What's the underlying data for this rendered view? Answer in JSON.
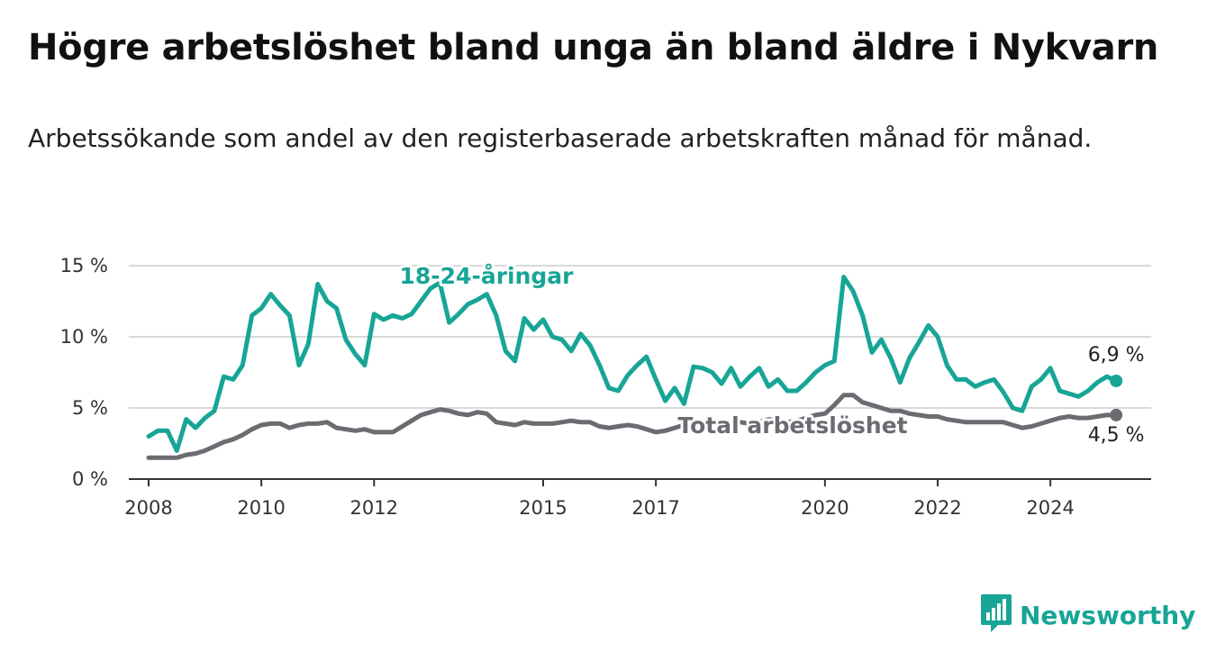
{
  "title": "Högre arbetslöshet bland unga än bland äldre i Nykvarn",
  "subtitle": "Arbetssökande som andel av den registerbaserade arbetskraften månad för månad.",
  "brand": {
    "name": "Newsworthy",
    "color": "#17a596",
    "icon": "bar-chart-logo-icon"
  },
  "chart_data": {
    "type": "line",
    "ylim": [
      0,
      15
    ],
    "xlim": [
      "2008-01",
      "2025-07"
    ],
    "y_ticks": [
      0,
      5,
      10,
      15
    ],
    "y_tick_labels": [
      "0 %",
      "5 %",
      "10 %",
      "15 %"
    ],
    "x_ticks": [
      "2008-01",
      "2010-01",
      "2012-01",
      "2015-01",
      "2017-01",
      "2020-01",
      "2022-01",
      "2024-01"
    ],
    "x_tick_labels": [
      "2008",
      "2010",
      "2012",
      "2015",
      "2017",
      "2020",
      "2022",
      "2024"
    ],
    "grid": "horizontal",
    "series": [
      {
        "name": "18-24-åringar",
        "color": "#17a596",
        "end_label": "6,9 %",
        "x": [
          "2008-01",
          "2008-03",
          "2008-05",
          "2008-07",
          "2008-09",
          "2008-11",
          "2009-01",
          "2009-03",
          "2009-05",
          "2009-07",
          "2009-09",
          "2009-11",
          "2010-01",
          "2010-03",
          "2010-05",
          "2010-07",
          "2010-09",
          "2010-11",
          "2011-01",
          "2011-03",
          "2011-05",
          "2011-07",
          "2011-09",
          "2011-11",
          "2012-01",
          "2012-03",
          "2012-05",
          "2012-07",
          "2012-09",
          "2012-11",
          "2013-01",
          "2013-03",
          "2013-05",
          "2013-07",
          "2013-09",
          "2013-11",
          "2014-01",
          "2014-03",
          "2014-05",
          "2014-07",
          "2014-09",
          "2014-11",
          "2015-01",
          "2015-03",
          "2015-05",
          "2015-07",
          "2015-09",
          "2015-11",
          "2016-01",
          "2016-03",
          "2016-05",
          "2016-07",
          "2016-09",
          "2016-11",
          "2017-01",
          "2017-03",
          "2017-05",
          "2017-07",
          "2017-09",
          "2017-11",
          "2018-01",
          "2018-03",
          "2018-05",
          "2018-07",
          "2018-09",
          "2018-11",
          "2019-01",
          "2019-03",
          "2019-05",
          "2019-07",
          "2019-09",
          "2019-11",
          "2020-01",
          "2020-03",
          "2020-05",
          "2020-07",
          "2020-09",
          "2020-11",
          "2021-01",
          "2021-03",
          "2021-05",
          "2021-07",
          "2021-09",
          "2021-11",
          "2022-01",
          "2022-03",
          "2022-05",
          "2022-07",
          "2022-09",
          "2022-11",
          "2023-01",
          "2023-03",
          "2023-05",
          "2023-07",
          "2023-09",
          "2023-11",
          "2024-01",
          "2024-03",
          "2024-05",
          "2024-07",
          "2024-09",
          "2024-11",
          "2025-01",
          "2025-03"
        ],
        "values": [
          3.0,
          3.4,
          3.4,
          2.0,
          4.2,
          3.6,
          4.3,
          4.8,
          7.2,
          7.0,
          8.0,
          11.5,
          12.0,
          13.0,
          12.2,
          11.5,
          8.0,
          9.5,
          13.7,
          12.5,
          12.0,
          9.8,
          8.8,
          8.0,
          11.6,
          11.2,
          11.5,
          11.3,
          11.6,
          12.5,
          13.4,
          13.8,
          11.0,
          11.6,
          12.3,
          12.6,
          13.0,
          11.5,
          9.0,
          8.3,
          11.3,
          10.5,
          11.2,
          10.0,
          9.8,
          9.0,
          10.2,
          9.4,
          8.0,
          6.4,
          6.2,
          7.3,
          8.0,
          8.6,
          7.0,
          5.5,
          6.4,
          5.3,
          7.9,
          7.8,
          7.5,
          6.7,
          7.8,
          6.5,
          7.2,
          7.8,
          6.5,
          7.0,
          6.2,
          6.2,
          6.8,
          7.5,
          8.0,
          8.3,
          14.2,
          13.2,
          11.5,
          8.9,
          9.8,
          8.5,
          6.8,
          8.5,
          9.6,
          10.8,
          10.0,
          8.0,
          7.0,
          7.0,
          6.5,
          6.8,
          7.0,
          6.1,
          5.0,
          4.8,
          6.5,
          7.0,
          7.8,
          6.2,
          6.0,
          5.8,
          6.2,
          6.8,
          7.2,
          6.9
        ]
      },
      {
        "name": "Total arbetslöshet",
        "color": "#6b6b72",
        "end_label": "4,5 %",
        "x": [
          "2008-01",
          "2008-03",
          "2008-05",
          "2008-07",
          "2008-09",
          "2008-11",
          "2009-01",
          "2009-03",
          "2009-05",
          "2009-07",
          "2009-09",
          "2009-11",
          "2010-01",
          "2010-03",
          "2010-05",
          "2010-07",
          "2010-09",
          "2010-11",
          "2011-01",
          "2011-03",
          "2011-05",
          "2011-07",
          "2011-09",
          "2011-11",
          "2012-01",
          "2012-03",
          "2012-05",
          "2012-07",
          "2012-09",
          "2012-11",
          "2013-01",
          "2013-03",
          "2013-05",
          "2013-07",
          "2013-09",
          "2013-11",
          "2014-01",
          "2014-03",
          "2014-05",
          "2014-07",
          "2014-09",
          "2014-11",
          "2015-01",
          "2015-03",
          "2015-05",
          "2015-07",
          "2015-09",
          "2015-11",
          "2016-01",
          "2016-03",
          "2016-05",
          "2016-07",
          "2016-09",
          "2016-11",
          "2017-01",
          "2017-03",
          "2017-05",
          "2017-07",
          "2017-09",
          "2017-11",
          "2018-01",
          "2018-03",
          "2018-05",
          "2018-07",
          "2018-09",
          "2018-11",
          "2019-01",
          "2019-03",
          "2019-05",
          "2019-07",
          "2019-09",
          "2019-11",
          "2020-01",
          "2020-03",
          "2020-05",
          "2020-07",
          "2020-09",
          "2020-11",
          "2021-01",
          "2021-03",
          "2021-05",
          "2021-07",
          "2021-09",
          "2021-11",
          "2022-01",
          "2022-03",
          "2022-05",
          "2022-07",
          "2022-09",
          "2022-11",
          "2023-01",
          "2023-03",
          "2023-05",
          "2023-07",
          "2023-09",
          "2023-11",
          "2024-01",
          "2024-03",
          "2024-05",
          "2024-07",
          "2024-09",
          "2024-11",
          "2025-01",
          "2025-03"
        ],
        "values": [
          1.5,
          1.5,
          1.5,
          1.5,
          1.7,
          1.8,
          2.0,
          2.3,
          2.6,
          2.8,
          3.1,
          3.5,
          3.8,
          3.9,
          3.9,
          3.6,
          3.8,
          3.9,
          3.9,
          4.0,
          3.6,
          3.5,
          3.4,
          3.5,
          3.3,
          3.3,
          3.3,
          3.7,
          4.1,
          4.5,
          4.7,
          4.9,
          4.8,
          4.6,
          4.5,
          4.7,
          4.6,
          4.0,
          3.9,
          3.8,
          4.0,
          3.9,
          3.9,
          3.9,
          4.0,
          4.1,
          4.0,
          4.0,
          3.7,
          3.6,
          3.7,
          3.8,
          3.7,
          3.5,
          3.3,
          3.4,
          3.6,
          3.8,
          3.8,
          3.8,
          3.9,
          3.8,
          3.9,
          4.0,
          3.9,
          4.0,
          4.2,
          4.1,
          4.0,
          4.1,
          4.3,
          4.5,
          4.6,
          5.2,
          5.9,
          5.9,
          5.4,
          5.2,
          5.0,
          4.8,
          4.8,
          4.6,
          4.5,
          4.4,
          4.4,
          4.2,
          4.1,
          4.0,
          4.0,
          4.0,
          4.0,
          4.0,
          3.8,
          3.6,
          3.7,
          3.9,
          4.1,
          4.3,
          4.4,
          4.3,
          4.3,
          4.4,
          4.5,
          4.5
        ]
      }
    ]
  }
}
